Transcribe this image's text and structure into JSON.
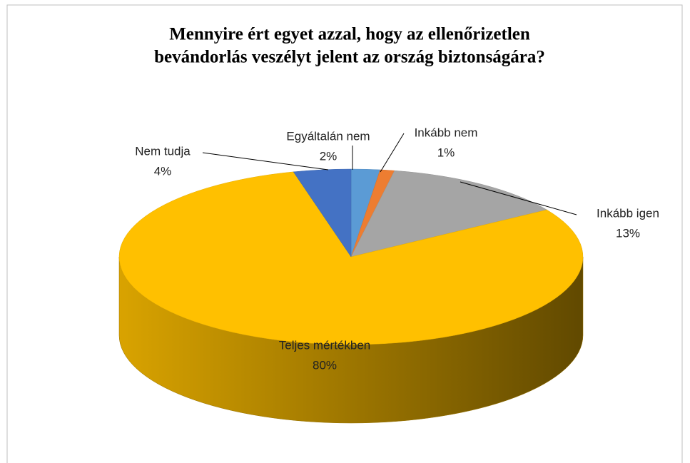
{
  "chart_data": {
    "type": "pie3d",
    "title": [
      "Mennyire ért egyet azzal, hogy az ellenőrizetlen",
      "bevándorlás veszélyt jelent az ország biztonságára?"
    ],
    "categories": [
      "Egyáltalán nem",
      "Inkább nem",
      "Inkább igen",
      "Teljes mértékben",
      "Nem tudja"
    ],
    "values": [
      2,
      1,
      13,
      80,
      4
    ],
    "value_labels": [
      "2%",
      "1%",
      "13%",
      "80%",
      "4%"
    ],
    "colors": [
      "#5b9bd5",
      "#ed7d31",
      "#a5a5a5",
      "#ffc000",
      "#4472c4"
    ]
  }
}
